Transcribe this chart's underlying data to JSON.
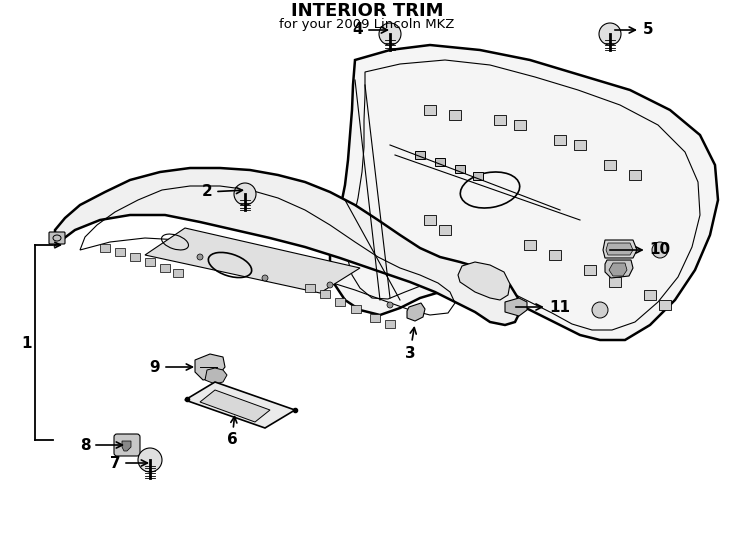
{
  "title": "INTERIOR TRIM",
  "subtitle": "for your 2009 Lincoln MKZ",
  "bg_color": "#ffffff",
  "line_color": "#000000",
  "text_color": "#000000",
  "label_fontsize": 11,
  "title_fontsize": 13
}
